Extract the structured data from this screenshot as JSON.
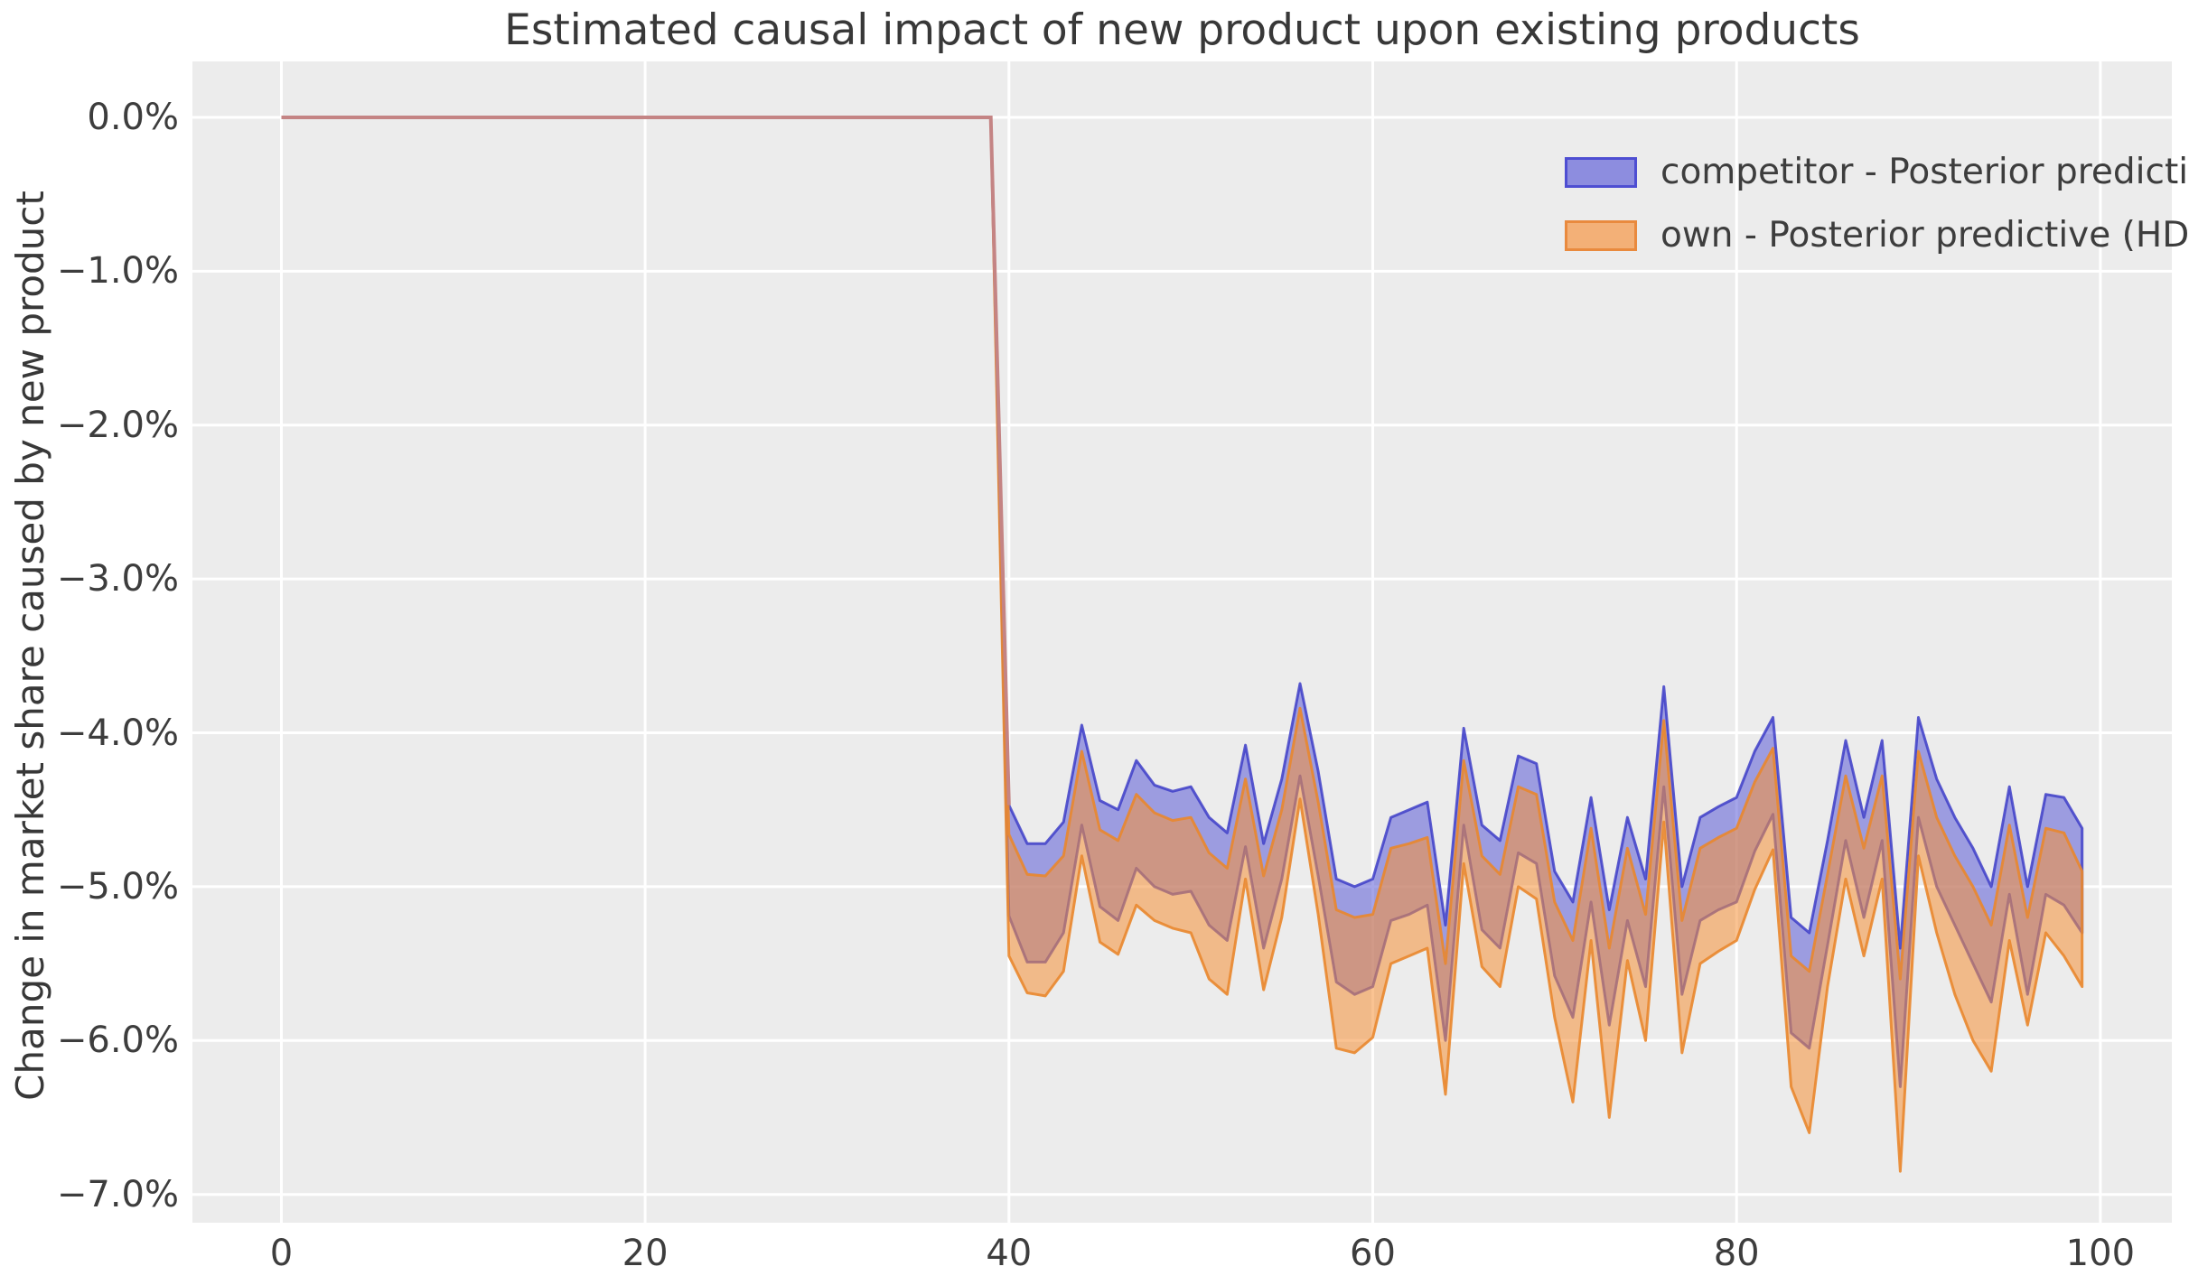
{
  "header": {
    "title": "Estimated causal impact of new product upon existing products"
  },
  "axes": {
    "ylabel": "Change in market share caused by new product",
    "x_ticks": {
      "values": [
        0,
        20,
        40,
        60,
        80,
        100
      ],
      "labels": [
        "0",
        "20",
        "40",
        "60",
        "80",
        "100"
      ]
    },
    "y_ticks": {
      "values": [
        0,
        -1,
        -2,
        -3,
        -4,
        -5,
        -6,
        -7
      ],
      "labels": [
        "0.0%",
        "−1.0%",
        "−2.0%",
        "−3.0%",
        "−4.0%",
        "−5.0%",
        "−6.0%",
        "−7.0%"
      ]
    }
  },
  "legend": {
    "items": [
      {
        "label": "competitor - Posterior predictive (HDI)",
        "series": "competitor"
      },
      {
        "label": "own - Posterior predictive (HDI)",
        "series": "own"
      }
    ]
  },
  "colors": {
    "competitor_fill": "rgba(75,75,212,0.5)",
    "competitor_edge": "rgba(62,62,200,0.85)",
    "own_fill": "rgba(246,146,56,0.55)",
    "own_edge": "rgba(233,135,45,0.9)",
    "pre_period_line": "#c48484",
    "plot_bg": "#ececec",
    "grid": "#ffffff",
    "text": "#3d3d3d",
    "legend_competitor_patch": "#8d8ddf",
    "legend_competitor_border": "#4e4ed2",
    "legend_own_patch": "#f3b077",
    "legend_own_border": "#e98a3e"
  },
  "chart_data": {
    "type": "area",
    "title": "Estimated causal impact of new product upon existing products",
    "xlabel": "",
    "ylabel": "Change in market share caused by new product",
    "xlim": [
      -4.89,
      103.93
    ],
    "ylim": [
      -7.184,
      0.364
    ],
    "grid": true,
    "legend_position": "upper right",
    "units": "percent",
    "intervention_x": 40,
    "pre_period": {
      "x": [
        0,
        39
      ],
      "value": 0.0
    },
    "x": [
      39,
      40,
      41,
      42,
      43,
      44,
      45,
      46,
      47,
      48,
      49,
      50,
      51,
      52,
      53,
      54,
      55,
      56,
      57,
      58,
      59,
      60,
      61,
      62,
      63,
      64,
      65,
      66,
      67,
      68,
      69,
      70,
      71,
      72,
      73,
      74,
      75,
      76,
      77,
      78,
      79,
      80,
      81,
      82,
      83,
      84,
      85,
      86,
      87,
      88,
      89,
      90,
      91,
      92,
      93,
      94,
      95,
      96,
      97,
      98,
      99
    ],
    "series": [
      {
        "name": "competitor - Posterior predictive (HDI)",
        "hdi_upper": [
          0,
          -4.47,
          -4.72,
          -4.72,
          -4.58,
          -3.95,
          -4.44,
          -4.5,
          -4.18,
          -4.34,
          -4.38,
          -4.35,
          -4.55,
          -4.65,
          -4.08,
          -4.72,
          -4.3,
          -3.68,
          -4.25,
          -4.95,
          -5.0,
          -4.95,
          -4.55,
          -4.5,
          -4.45,
          -5.25,
          -3.97,
          -4.6,
          -4.7,
          -4.15,
          -4.2,
          -4.9,
          -5.1,
          -4.42,
          -5.15,
          -4.55,
          -4.95,
          -3.7,
          -5.0,
          -4.55,
          -4.48,
          -4.42,
          -4.12,
          -3.9,
          -5.2,
          -5.3,
          -4.7,
          -4.05,
          -4.55,
          -4.05,
          -5.4,
          -3.9,
          -4.3,
          -4.55,
          -4.75,
          -5.0,
          -4.35,
          -5.0,
          -4.4,
          -4.42,
          -4.62
        ],
        "hdi_lower": [
          0,
          -5.19,
          -5.49,
          -5.49,
          -5.3,
          -4.6,
          -5.13,
          -5.22,
          -4.88,
          -5.0,
          -5.05,
          -5.03,
          -5.25,
          -5.35,
          -4.74,
          -5.4,
          -4.95,
          -4.28,
          -4.93,
          -5.62,
          -5.7,
          -5.65,
          -5.22,
          -5.18,
          -5.12,
          -6.0,
          -4.6,
          -5.28,
          -5.4,
          -4.78,
          -4.85,
          -5.58,
          -5.85,
          -5.1,
          -5.9,
          -5.22,
          -5.65,
          -4.35,
          -5.7,
          -5.22,
          -5.15,
          -5.1,
          -4.77,
          -4.53,
          -5.95,
          -6.05,
          -5.38,
          -4.7,
          -5.2,
          -4.7,
          -6.3,
          -4.55,
          -5.0,
          -5.25,
          -5.5,
          -5.75,
          -5.05,
          -5.7,
          -5.05,
          -5.12,
          -5.3
        ]
      },
      {
        "name": "own - Posterior predictive (HDI)",
        "hdi_upper": [
          0,
          -4.66,
          -4.92,
          -4.93,
          -4.8,
          -4.12,
          -4.63,
          -4.7,
          -4.4,
          -4.52,
          -4.57,
          -4.55,
          -4.78,
          -4.88,
          -4.3,
          -4.93,
          -4.5,
          -3.84,
          -4.45,
          -5.15,
          -5.2,
          -5.18,
          -4.75,
          -4.72,
          -4.68,
          -5.5,
          -4.18,
          -4.8,
          -4.92,
          -4.35,
          -4.4,
          -5.1,
          -5.35,
          -4.62,
          -5.4,
          -4.75,
          -5.18,
          -3.92,
          -5.22,
          -4.75,
          -4.68,
          -4.62,
          -4.32,
          -4.1,
          -5.45,
          -5.55,
          -4.92,
          -4.28,
          -4.75,
          -4.28,
          -5.6,
          -4.12,
          -4.55,
          -4.8,
          -5.0,
          -5.25,
          -4.6,
          -5.2,
          -4.62,
          -4.65,
          -4.9
        ],
        "hdi_lower": [
          0,
          -5.45,
          -5.69,
          -5.71,
          -5.55,
          -4.8,
          -5.36,
          -5.44,
          -5.12,
          -5.22,
          -5.27,
          -5.3,
          -5.6,
          -5.7,
          -4.95,
          -5.67,
          -5.2,
          -4.43,
          -5.18,
          -6.05,
          -6.08,
          -5.98,
          -5.5,
          -5.45,
          -5.4,
          -6.35,
          -4.85,
          -5.52,
          -5.65,
          -5.0,
          -5.08,
          -5.85,
          -6.4,
          -5.35,
          -6.5,
          -5.48,
          -6.0,
          -4.58,
          -6.08,
          -5.5,
          -5.42,
          -5.35,
          -5.02,
          -4.76,
          -6.3,
          -6.6,
          -5.65,
          -4.95,
          -5.45,
          -4.95,
          -6.85,
          -4.8,
          -5.3,
          -5.7,
          -6.0,
          -6.2,
          -5.35,
          -5.9,
          -5.3,
          -5.45,
          -5.65
        ]
      }
    ]
  }
}
